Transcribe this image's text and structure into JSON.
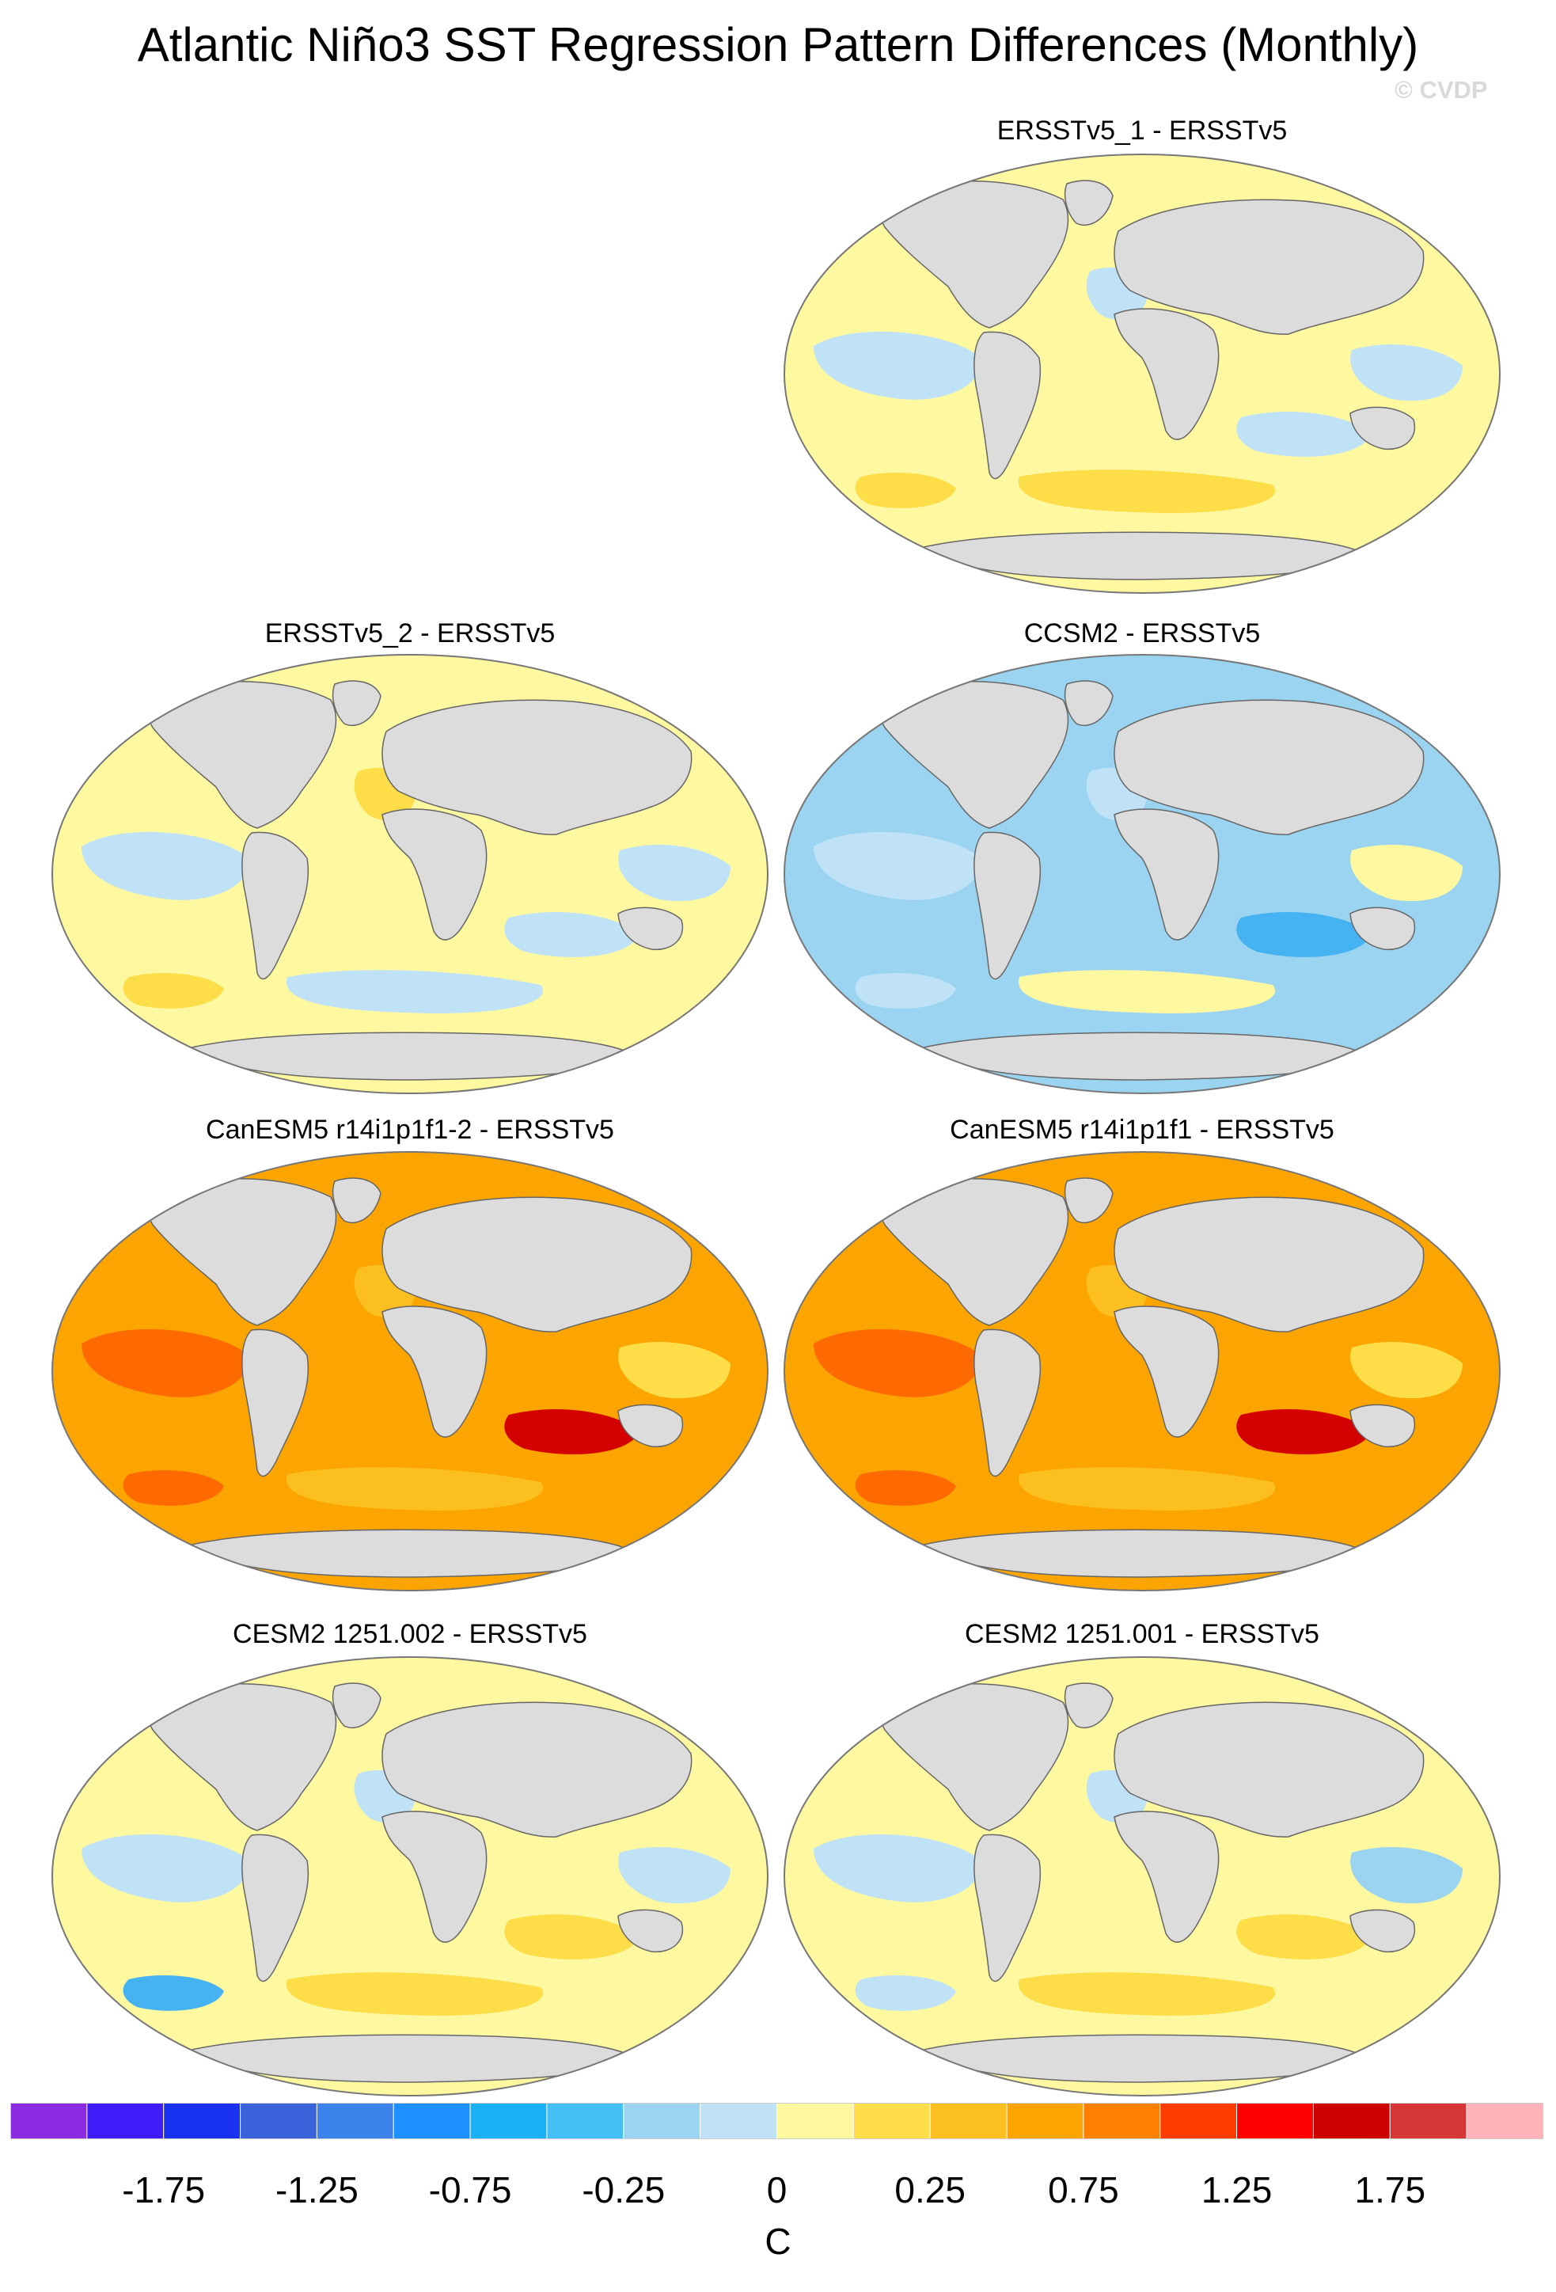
{
  "title": "Atlantic Niño3 SST Regression Pattern Differences (Monthly)",
  "credit": "© CVDP",
  "land_color": "#dcdcdc",
  "panels": [
    {
      "title": "ERSSTv5_1 - ERSSTv5",
      "base": "#fef9a1",
      "patches": [
        "#bfe2f7",
        "#bfe2f7",
        "#fddd48",
        "#bfe2f7",
        "#fddd48",
        "#fddd48",
        "#bfe2f7"
      ]
    },
    {
      "title": "ERSSTv5_2 - ERSSTv5",
      "base": "#fef9a1",
      "patches": [
        "#bfe2f7",
        "#bfe2f7",
        "#fddd48",
        "#fddd48",
        "#bfe2f7",
        "#fddd48",
        "#bfe2f7"
      ]
    },
    {
      "title": "CCSM2 - ERSSTv5",
      "base": "#9bd4f0",
      "patches": [
        "#bfe2f7",
        "#45b3f2",
        "#45b3f2",
        "#bfe2f7",
        "#fef9a1",
        "#bfe2f7",
        "#fef9a1"
      ]
    },
    {
      "title": "CanESM5 r14i1p1f1-2 - ERSSTv5",
      "base": "#fca500",
      "patches": [
        "#ff6a00",
        "#d40000",
        "#fddd48",
        "#fbbf1f",
        "#fbbf1f",
        "#ff6a00",
        "#fddd48"
      ]
    },
    {
      "title": "CanESM5 r14i1p1f1 - ERSSTv5",
      "base": "#fca500",
      "patches": [
        "#ff6a00",
        "#d40000",
        "#fddd48",
        "#fbbf1f",
        "#fbbf1f",
        "#ff6a00",
        "#fddd48"
      ]
    },
    {
      "title": "CESM2 1251.002 - ERSSTv5",
      "base": "#fef9a1",
      "patches": [
        "#bfe2f7",
        "#fddd48",
        "#9bd4f0",
        "#bfe2f7",
        "#fddd48",
        "#45b3f2",
        "#bfe2f7"
      ]
    },
    {
      "title": "CESM2 1251.001 - ERSSTv5",
      "base": "#fef9a1",
      "patches": [
        "#bfe2f7",
        "#fddd48",
        "#9bd4f0",
        "#bfe2f7",
        "#fddd48",
        "#bfe2f7",
        "#9bd4f0"
      ]
    }
  ],
  "colorbar": {
    "colors": [
      "#8a2be2",
      "#3f1dfa",
      "#1932f0",
      "#3a63db",
      "#3d83ec",
      "#1e90ff",
      "#1ab1f7",
      "#45c0f7",
      "#9bd4f0",
      "#bfe2f7",
      "#fef9a1",
      "#fddd48",
      "#fbbf1f",
      "#fca500",
      "#ff8000",
      "#ff3c00",
      "#ff0000",
      "#cc0000",
      "#d63636",
      "#ffb3b9"
    ],
    "labels": [
      "-1.75",
      "-1.25",
      "-0.75",
      "-0.25",
      "0",
      "0.25",
      "0.75",
      "1.25",
      "1.75"
    ],
    "units": "C"
  }
}
